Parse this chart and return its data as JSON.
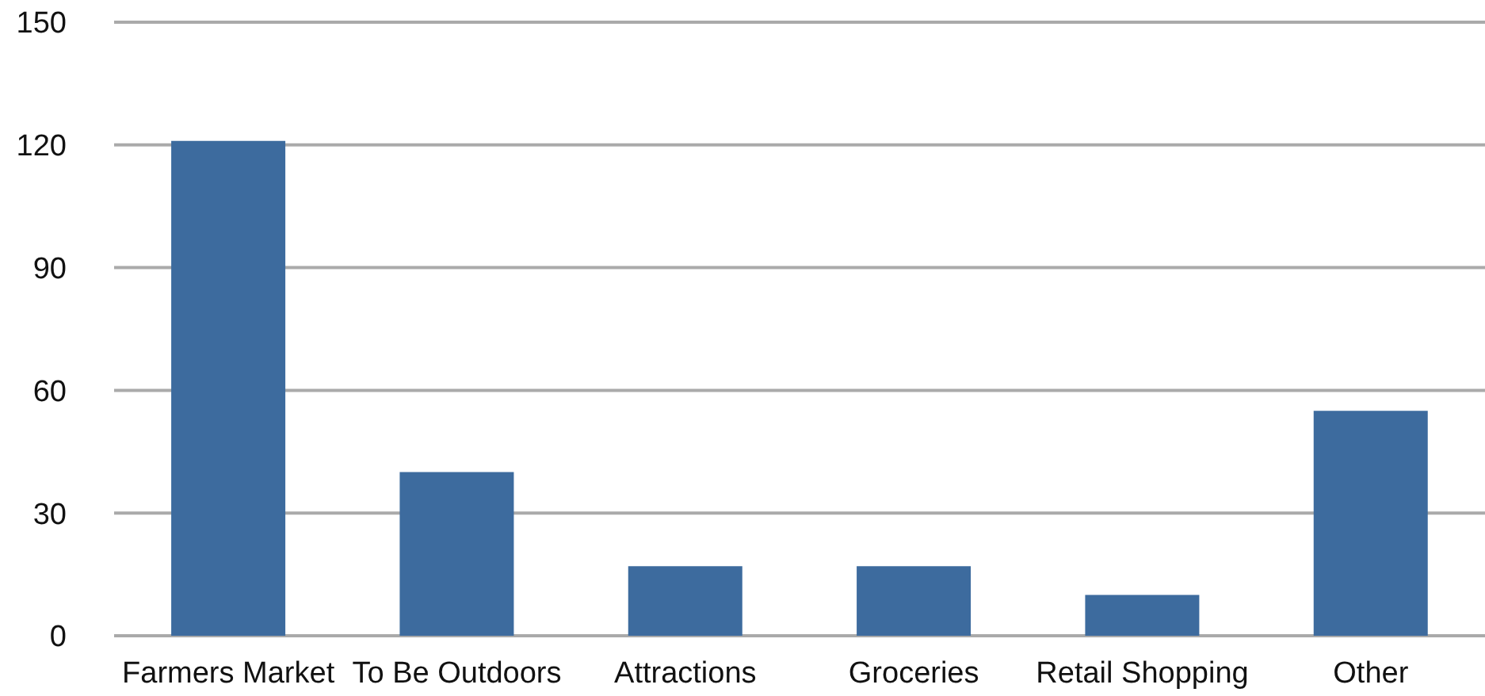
{
  "chart_data": {
    "type": "bar",
    "categories": [
      "Farmers Market",
      "To Be Outdoors",
      "Attractions",
      "Groceries",
      "Retail Shopping",
      "Other"
    ],
    "values": [
      121,
      40,
      17,
      17,
      10,
      55
    ],
    "color": "#3d6b9e",
    "ylim": [
      0,
      150
    ],
    "yticks": [
      0,
      30,
      60,
      90,
      120,
      150
    ],
    "grid": "y"
  }
}
